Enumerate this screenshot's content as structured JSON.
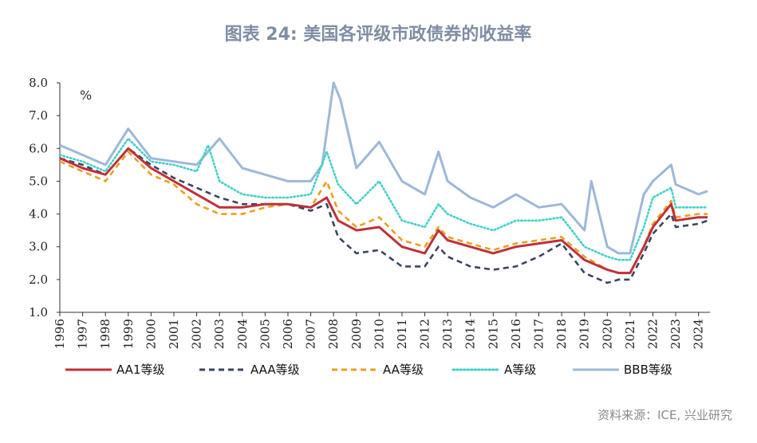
{
  "chart_data": {
    "type": "line",
    "title": "图表 24: 美国各评级市政债券的收益率",
    "ylabel_unit": "%",
    "ylim": [
      1.0,
      8.0
    ],
    "yticks": [
      "8.0",
      "7.0",
      "6.0",
      "5.0",
      "4.0",
      "3.0",
      "2.0",
      "1.0"
    ],
    "xlim": [
      1996,
      2024.5
    ],
    "xticks": [
      "1996",
      "1997",
      "1998",
      "1999",
      "2000",
      "2001",
      "2002",
      "2003",
      "2004",
      "2005",
      "2006",
      "2007",
      "2008",
      "2009",
      "2010",
      "2011",
      "2012",
      "2013",
      "2014",
      "2015",
      "2016",
      "2017",
      "2018",
      "2019",
      "2020",
      "2021",
      "2022",
      "2023",
      "2024"
    ],
    "source": "资料来源：ICE, 兴业研究",
    "series": [
      {
        "name": "AA1等级",
        "color": "#c0303a",
        "style": "solid",
        "x": [
          1996,
          1997,
          1998,
          1999,
          2000,
          2001,
          2002,
          2003,
          2004,
          2005,
          2006,
          2007,
          2007.7,
          2008.2,
          2009,
          2010,
          2011,
          2012,
          2012.6,
          2013,
          2014,
          2015,
          2016,
          2017,
          2018,
          2019,
          2020,
          2020.5,
          2021,
          2021.6,
          2022,
          2022.8,
          2023,
          2024,
          2024.4
        ],
        "values": [
          5.7,
          5.4,
          5.2,
          6.0,
          5.4,
          5.0,
          4.6,
          4.2,
          4.2,
          4.3,
          4.3,
          4.2,
          4.5,
          3.8,
          3.5,
          3.6,
          3.0,
          2.8,
          3.5,
          3.2,
          3.0,
          2.8,
          3.0,
          3.1,
          3.2,
          2.6,
          2.3,
          2.2,
          2.2,
          3.0,
          3.6,
          4.3,
          3.8,
          3.9,
          3.9
        ]
      },
      {
        "name": "AAA等级",
        "color": "#3a4660",
        "style": "dashed",
        "x": [
          1996,
          1997,
          1998,
          1999,
          2000,
          2001,
          2002,
          2003,
          2004,
          2005,
          2006,
          2007,
          2007.7,
          2008.2,
          2009,
          2010,
          2011,
          2012,
          2012.6,
          2013,
          2014,
          2015,
          2016,
          2017,
          2018,
          2019,
          2020,
          2020.5,
          2021,
          2021.6,
          2022,
          2022.8,
          2023,
          2024,
          2024.4
        ],
        "values": [
          5.7,
          5.5,
          5.2,
          6.0,
          5.5,
          5.1,
          4.8,
          4.5,
          4.3,
          4.3,
          4.3,
          4.1,
          4.3,
          3.3,
          2.8,
          2.9,
          2.4,
          2.4,
          3.0,
          2.7,
          2.4,
          2.3,
          2.4,
          2.7,
          3.1,
          2.2,
          1.9,
          2.0,
          2.0,
          2.8,
          3.4,
          4.0,
          3.6,
          3.7,
          3.8
        ]
      },
      {
        "name": "AA等级",
        "color": "#e8a020",
        "style": "dashed",
        "x": [
          1996,
          1997,
          1998,
          1999,
          2000,
          2001,
          2002,
          2003,
          2004,
          2005,
          2006,
          2007,
          2007.7,
          2008.2,
          2009,
          2010,
          2011,
          2012,
          2012.6,
          2013,
          2014,
          2015,
          2016,
          2017,
          2018,
          2019,
          2020,
          2020.5,
          2021,
          2021.6,
          2022,
          2022.8,
          2023,
          2024,
          2024.4
        ],
        "values": [
          5.6,
          5.3,
          5.0,
          5.9,
          5.2,
          4.9,
          4.3,
          4.0,
          4.0,
          4.2,
          4.3,
          4.2,
          5.0,
          4.1,
          3.6,
          3.9,
          3.2,
          3.0,
          3.6,
          3.3,
          3.1,
          2.9,
          3.1,
          3.2,
          3.3,
          2.7,
          2.3,
          2.2,
          2.2,
          3.0,
          3.7,
          4.4,
          3.9,
          4.0,
          4.0
        ]
      },
      {
        "name": "A等级",
        "color": "#40d0c8",
        "style": "dotted",
        "x": [
          1996,
          1997,
          1998,
          1999,
          2000,
          2001,
          2002,
          2002.5,
          2003,
          2004,
          2005,
          2006,
          2007,
          2007.7,
          2008.2,
          2009,
          2010,
          2011,
          2012,
          2012.6,
          2013,
          2014,
          2015,
          2016,
          2017,
          2018,
          2019,
          2020,
          2020.5,
          2021,
          2021.6,
          2022,
          2022.8,
          2023,
          2024,
          2024.4
        ],
        "values": [
          5.8,
          5.6,
          5.3,
          6.3,
          5.6,
          5.5,
          5.3,
          6.1,
          5.0,
          4.6,
          4.5,
          4.5,
          4.6,
          5.9,
          4.9,
          4.3,
          5.0,
          3.8,
          3.6,
          4.3,
          4.0,
          3.7,
          3.5,
          3.8,
          3.8,
          3.9,
          3.0,
          2.7,
          2.6,
          2.6,
          3.6,
          4.5,
          4.8,
          4.2,
          4.2,
          4.2
        ]
      },
      {
        "name": "BBB等级",
        "color": "#9db8d8",
        "style": "solid",
        "x": [
          1996,
          1997,
          1998,
          1999,
          2000,
          2001,
          2002,
          2003,
          2004,
          2005,
          2006,
          2007,
          2007.5,
          2008,
          2008.3,
          2009,
          2010,
          2011,
          2012,
          2012.6,
          2013,
          2014,
          2015,
          2016,
          2017,
          2018,
          2019,
          2019.3,
          2020,
          2020.5,
          2021,
          2021.6,
          2022,
          2022.8,
          2023,
          2024,
          2024.4
        ],
        "values": [
          6.1,
          5.8,
          5.5,
          6.6,
          5.7,
          5.6,
          5.5,
          6.3,
          5.4,
          5.2,
          5.0,
          5.0,
          5.5,
          8.0,
          7.5,
          5.4,
          6.2,
          5.0,
          4.6,
          5.9,
          5.0,
          4.5,
          4.2,
          4.6,
          4.2,
          4.3,
          3.5,
          5.0,
          3.0,
          2.8,
          2.8,
          4.6,
          5.0,
          5.5,
          4.9,
          4.6,
          4.7
        ]
      }
    ]
  }
}
